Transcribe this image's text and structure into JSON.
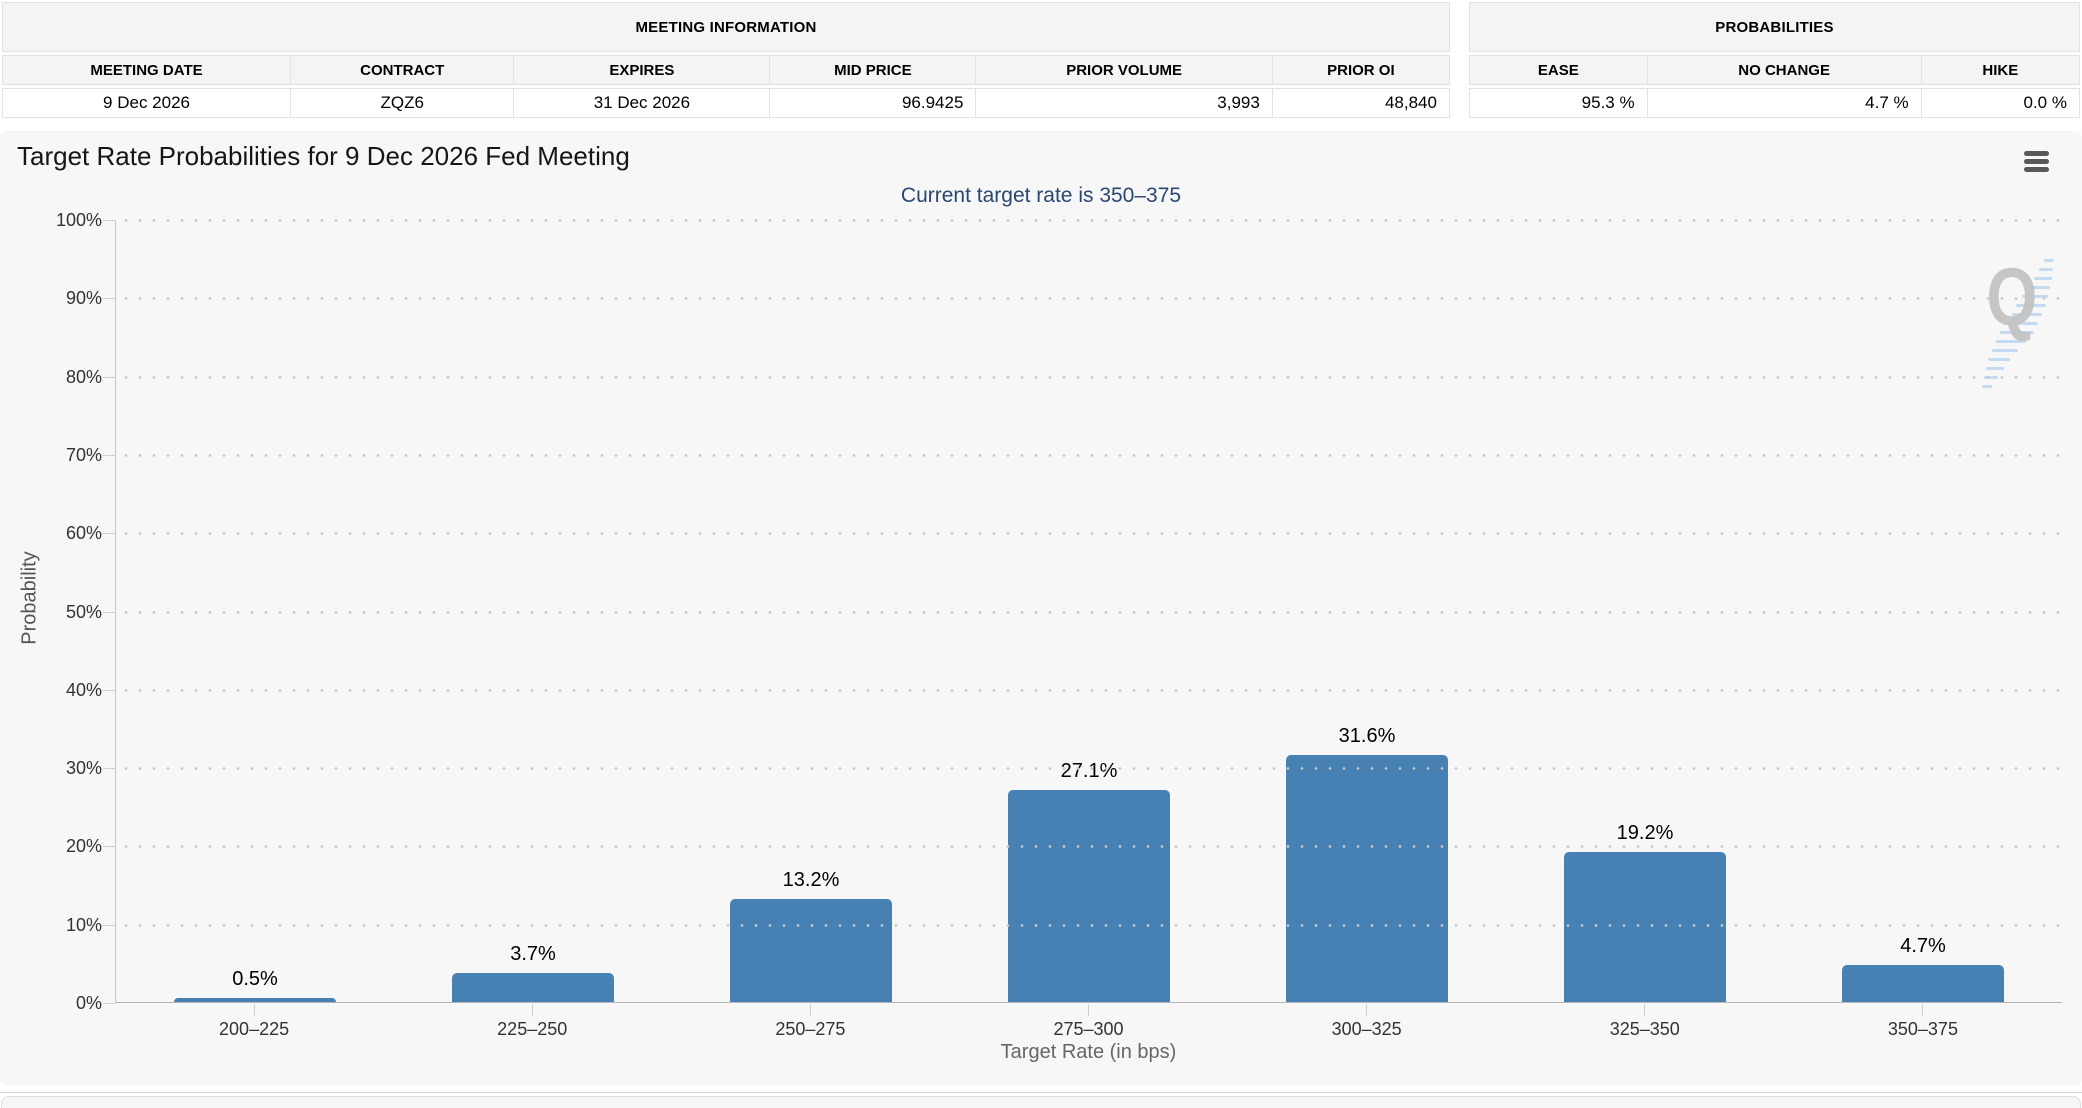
{
  "meeting_info": {
    "title": "MEETING INFORMATION",
    "columns": [
      "MEETING DATE",
      "CONTRACT",
      "EXPIRES",
      "MID PRICE",
      "PRIOR VOLUME",
      "PRIOR OI"
    ],
    "values": [
      "9 Dec 2026",
      "ZQZ6",
      "31 Dec 2026",
      "96.9425",
      "3,993",
      "48,840"
    ]
  },
  "probabilities": {
    "title": "PROBABILITIES",
    "columns": [
      "EASE",
      "NO CHANGE",
      "HIKE"
    ],
    "values": [
      "95.3 %",
      "4.7 %",
      "0.0 %"
    ]
  },
  "chart": {
    "menu_icon": "hamburger-icon",
    "watermark_letter": "Q"
  },
  "chart_data": {
    "type": "bar",
    "title": "Target Rate Probabilities for 9 Dec 2026 Fed Meeting",
    "subtitle": "Current target rate is 350–375",
    "categories": [
      "200–225",
      "225–250",
      "250–275",
      "275–300",
      "300–325",
      "325–350",
      "350–375"
    ],
    "values": [
      0.5,
      3.7,
      13.2,
      27.1,
      31.6,
      19.2,
      4.7
    ],
    "bar_labels": [
      "0.5%",
      "3.7%",
      "13.2%",
      "27.1%",
      "31.6%",
      "19.2%",
      "4.7%"
    ],
    "xlabel": "Target Rate (in bps)",
    "ylabel": "Probability",
    "ylim": [
      0,
      100
    ],
    "ytick_step": 10,
    "grid": "dotted-horizontal",
    "legend": "none",
    "bar_color": "#4781b4"
  },
  "colors": {
    "bar": "#4781b4",
    "subtitle_text": "#2b4670",
    "panel_background": "#f7f7f7",
    "table_header_background": "#f4f4f4",
    "axis_line": "#b5b5b5"
  }
}
